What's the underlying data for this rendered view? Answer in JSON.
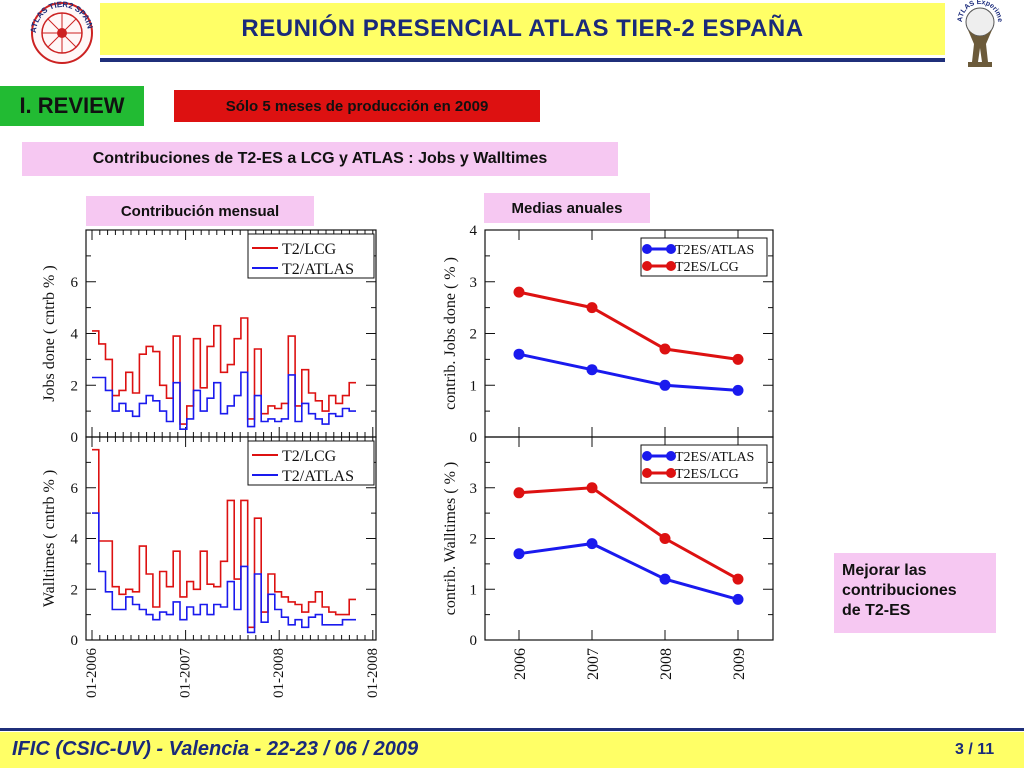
{
  "header": {
    "title": "REUNIÓN  PRESENCIAL  ATLAS  TIER-2  ESPAÑA"
  },
  "logos": {
    "left_text": "ATLAS TIER2 SPAIN",
    "right_text": "ATLAS Experiment"
  },
  "section_title": "I. REVIEW",
  "notice": "Sólo 5 meses de producción en 2009",
  "subtitle": "Contribuciones de T2-ES a LCG y ATLAS :  Jobs y Walltimes",
  "monthly_label": "Contribución mensual",
  "annual_label": "Medias anuales",
  "improve_note": "Mejorar las\ncontribuciones\nde T2-ES",
  "footer": {
    "left": "IFIC (CSIC-UV)  -  Valencia  -  22-23 / 06 / 2009",
    "page": "3 / 11"
  },
  "colors": {
    "lcg": "#dd1111",
    "atlas": "#1a1aee",
    "header_bg": "#ffff66",
    "accent": "#22bb33"
  },
  "chart_data": [
    {
      "type": "line",
      "ylabel": "Jobs done  ( cntrb % )",
      "ylim": [
        0,
        8
      ],
      "yticks": [
        "0",
        "2",
        "4",
        "6"
      ],
      "xtick_labels": [
        "01-2006",
        "01-2007",
        "01-2008",
        "01-2008"
      ],
      "legend": "top-right",
      "series": [
        {
          "name": "T2/LCG",
          "color": "#dd1111",
          "values": [
            4.1,
            3.6,
            3.0,
            1.6,
            1.8,
            2.5,
            1.7,
            3.2,
            3.5,
            3.3,
            2.0,
            1.5,
            3.9,
            0.5,
            1.2,
            3.8,
            1.9,
            3.5,
            4.3,
            2.5,
            2.8,
            3.8,
            4.6,
            0.7,
            3.4,
            0.9,
            1.2,
            1.1,
            1.3,
            3.9,
            1.2,
            2.6,
            1.7,
            1.4,
            1.0,
            1.6,
            1.3,
            1.6,
            2.1
          ]
        },
        {
          "name": "T2/ATLAS",
          "color": "#1a1aee",
          "values": [
            2.3,
            2.3,
            1.8,
            1.0,
            1.3,
            1.0,
            0.8,
            1.3,
            1.6,
            1.4,
            1.0,
            0.6,
            2.1,
            0.3,
            0.7,
            1.8,
            1.0,
            1.5,
            2.1,
            0.9,
            1.2,
            1.6,
            2.5,
            0.4,
            1.6,
            0.6,
            0.7,
            0.6,
            0.7,
            2.4,
            0.6,
            1.3,
            0.9,
            0.7,
            0.5,
            0.9,
            0.8,
            1.1,
            1.0
          ]
        }
      ]
    },
    {
      "type": "line",
      "ylabel": "Walltimes  ( cntrb % )",
      "ylim": [
        0,
        8
      ],
      "yticks": [
        "0",
        "2",
        "4",
        "6"
      ],
      "xtick_labels": [
        "01-2006",
        "01-2007",
        "01-2008",
        "01-2008"
      ],
      "legend": "top-right",
      "series": [
        {
          "name": "T2/LCG",
          "color": "#dd1111",
          "values": [
            7.5,
            3.9,
            3.9,
            2.1,
            1.8,
            2.0,
            1.9,
            3.7,
            2.6,
            1.3,
            2.7,
            2.1,
            3.5,
            1.7,
            2.3,
            2.0,
            3.5,
            2.2,
            2.1,
            3.1,
            5.5,
            2.4,
            5.5,
            0.5,
            4.8,
            1.1,
            2.6,
            1.9,
            1.7,
            1.5,
            1.4,
            1.1,
            1.5,
            1.9,
            1.3,
            1.1,
            1.0,
            1.0,
            1.6
          ]
        },
        {
          "name": "T2/ATLAS",
          "color": "#1a1aee",
          "values": [
            5.0,
            2.7,
            1.9,
            1.2,
            1.2,
            1.7,
            1.4,
            1.2,
            1.0,
            0.8,
            1.1,
            1.0,
            1.5,
            0.8,
            1.3,
            1.0,
            1.4,
            1.0,
            1.4,
            1.3,
            2.3,
            1.2,
            2.9,
            0.3,
            2.6,
            0.7,
            1.8,
            1.2,
            0.9,
            0.6,
            0.8,
            0.5,
            0.9,
            1.0,
            0.6,
            0.6,
            0.6,
            0.8,
            0.8
          ]
        }
      ]
    },
    {
      "type": "line",
      "ylabel": "contrib. Jobs done  ( % )",
      "ylim": [
        0,
        4
      ],
      "yticks": [
        "0",
        "1",
        "2",
        "3",
        "4"
      ],
      "categories": [
        "2006",
        "2007",
        "2008",
        "2009"
      ],
      "legend": "top-right",
      "series": [
        {
          "name": "T2ES/ATLAS",
          "color": "#1a1aee",
          "values": [
            1.6,
            1.3,
            1.0,
            0.9
          ]
        },
        {
          "name": "T2ES/LCG",
          "color": "#dd1111",
          "values": [
            2.8,
            2.5,
            1.7,
            1.5
          ]
        }
      ]
    },
    {
      "type": "line",
      "ylabel": "contrib. Walltimes ( % )",
      "ylim": [
        0,
        4
      ],
      "yticks": [
        "0",
        "1",
        "2",
        "3"
      ],
      "categories": [
        "2006",
        "2007",
        "2008",
        "2009"
      ],
      "legend": "top-right",
      "series": [
        {
          "name": "T2ES/ATLAS",
          "color": "#1a1aee",
          "values": [
            1.7,
            1.9,
            1.2,
            0.8
          ]
        },
        {
          "name": "T2ES/LCG",
          "color": "#dd1111",
          "values": [
            2.9,
            3.0,
            2.0,
            1.2
          ]
        }
      ]
    }
  ]
}
